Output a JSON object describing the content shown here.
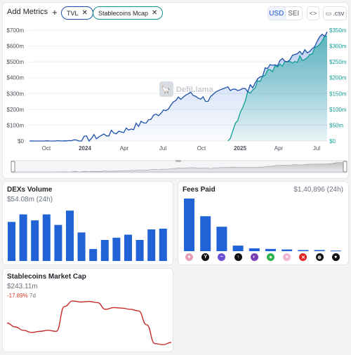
{
  "toolbar": {
    "add_metrics": "Add Metrics",
    "chips": [
      {
        "label": "TVL",
        "color": "#1c4fa8"
      },
      {
        "label": "Stablecoins Mcap",
        "color": "#0f8f86"
      }
    ],
    "denomination": [
      {
        "label": "USD",
        "active": true
      },
      {
        "label": "SEI",
        "active": false
      }
    ],
    "embed_label": "<>",
    "csv_label": ".csv"
  },
  "main_chart": {
    "watermark": "DefiLlama",
    "left_axis_ticks": [
      "$0",
      "$100m",
      "$200m",
      "$300m",
      "$400m",
      "$500m",
      "$600m",
      "$700m"
    ],
    "right_axis_ticks": [
      "$0",
      "$50m",
      "$100m",
      "$150m",
      "$200m",
      "$250m",
      "$300m",
      "$350m"
    ],
    "x_ticks": [
      {
        "label": "Oct",
        "bold": false
      },
      {
        "label": "2024",
        "bold": true
      },
      {
        "label": "Apr",
        "bold": false
      },
      {
        "label": "Jul",
        "bold": false
      },
      {
        "label": "Oct",
        "bold": false
      },
      {
        "label": "2025",
        "bold": true
      },
      {
        "label": "Apr",
        "bold": false
      },
      {
        "label": "Jul",
        "bold": false
      }
    ],
    "tvl_color": "#1c4fa8",
    "stable_color": "#0f9e95"
  },
  "chart_data": [
    {
      "type": "line",
      "title": "",
      "x": [
        "2023-08",
        "2023-10",
        "2023-12",
        "2024-02",
        "2024-04",
        "2024-06",
        "2024-08",
        "2024-10",
        "2024-11",
        "2025-01",
        "2025-03",
        "2025-04",
        "2025-05",
        "2025-06",
        "2025-07",
        "2025-08"
      ],
      "series": [
        {
          "name": "TVL",
          "axis": "left",
          "values": [
            0,
            0,
            2,
            15,
            45,
            75,
            130,
            220,
            300,
            260,
            340,
            320,
            460,
            520,
            570,
            690
          ]
        },
        {
          "name": "Stablecoins Mcap",
          "axis": "right",
          "values": [
            null,
            null,
            null,
            null,
            null,
            null,
            null,
            null,
            null,
            null,
            0,
            150,
            225,
            245,
            270,
            330
          ]
        }
      ],
      "ylim_left": [
        0,
        700
      ],
      "ylim_right": [
        0,
        350
      ]
    },
    {
      "type": "bar",
      "title": "DEXs Volume",
      "values": [
        52,
        62,
        54,
        62,
        48,
        67,
        38,
        16,
        28,
        31,
        35,
        28,
        42,
        43
      ]
    },
    {
      "type": "bar",
      "title": "Fees Paid",
      "values": [
        95,
        63,
        44,
        10,
        5,
        4,
        3,
        2,
        2,
        1
      ]
    },
    {
      "type": "line",
      "title": "Stablecoins Market Cap",
      "values": [
        265,
        258,
        252,
        248,
        250,
        252,
        250,
        295,
        305,
        303,
        304,
        302,
        290,
        293,
        292,
        290,
        287,
        262,
        228,
        226,
        230
      ]
    }
  ],
  "dex_volume": {
    "title": "DEXs Volume",
    "value": "$54.08m (24h)",
    "bar_color": "#2163d6"
  },
  "fees_paid": {
    "title": "Fees Paid",
    "value": "$1,40,896 (24h)",
    "bar_color": "#2163d6",
    "icons": [
      {
        "name": "token-icon-1",
        "color": "#e8a0b6",
        "glyph": "●"
      },
      {
        "name": "token-icon-2",
        "color": "#111111",
        "glyph": "Y"
      },
      {
        "name": "token-icon-3",
        "color": "#6b4fd8",
        "glyph": "~"
      },
      {
        "name": "token-icon-4",
        "color": "#111111",
        "glyph": "↑"
      },
      {
        "name": "token-icon-5",
        "color": "#7b3fb5",
        "glyph": "◐"
      },
      {
        "name": "token-icon-6",
        "color": "#2bb24c",
        "glyph": "✦"
      },
      {
        "name": "token-icon-7",
        "color": "#f0b6d4",
        "glyph": "●"
      },
      {
        "name": "token-icon-8",
        "color": "#e02424",
        "glyph": "✕"
      },
      {
        "name": "token-icon-9",
        "color": "#111111",
        "glyph": "⊕"
      },
      {
        "name": "token-icon-10",
        "color": "#111111",
        "glyph": "●"
      }
    ]
  },
  "stablecoins_mcap": {
    "title": "Stablecoins Market Cap",
    "value": "$243.11m",
    "change": "-17.89%",
    "period": "7d",
    "line_color": "#c62828"
  }
}
